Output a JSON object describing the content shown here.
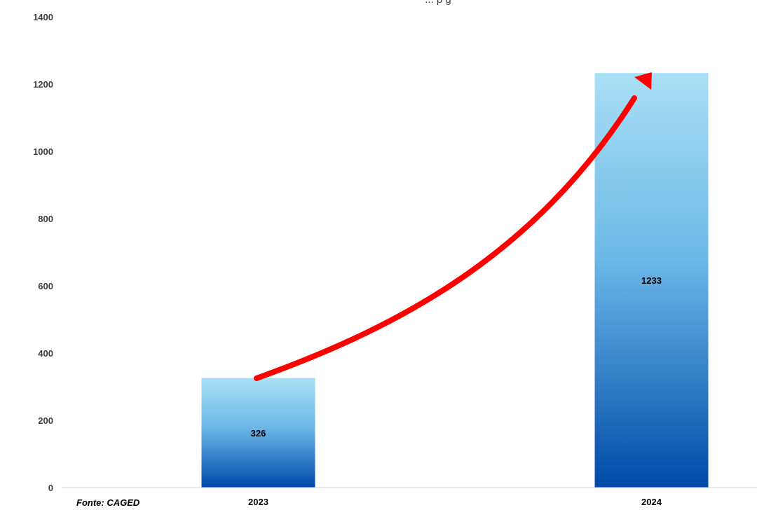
{
  "chart_data": {
    "type": "bar",
    "title": "... p g",
    "categories": [
      "2023",
      "2024"
    ],
    "values": [
      326,
      1233
    ],
    "data_labels": [
      "326",
      "1233"
    ],
    "yticks": [
      "0",
      "200",
      "400",
      "600",
      "800",
      "1000",
      "1200",
      "1400"
    ],
    "ylim": [
      0,
      1400
    ],
    "grid": false,
    "legend": "none",
    "bar_colors": {
      "top": "#a9e0f5",
      "bottom": "#0049a8"
    },
    "arrow_color": "#ff0000",
    "source": "Fonte: CAGED"
  }
}
